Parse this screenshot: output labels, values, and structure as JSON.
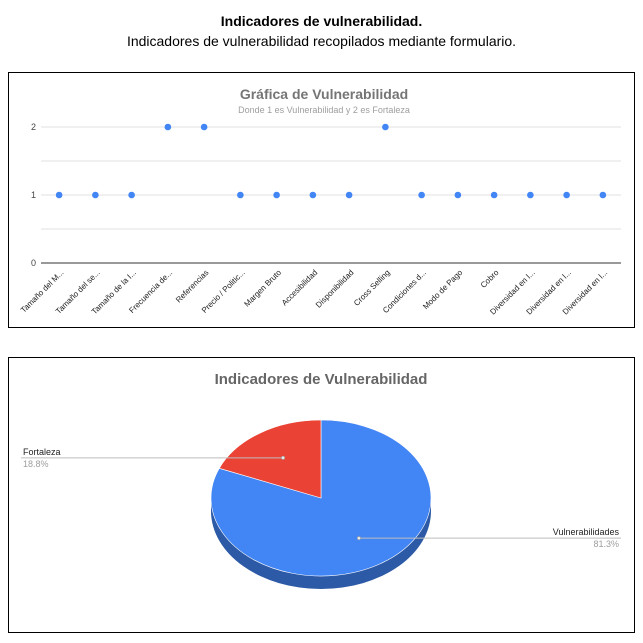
{
  "header": {
    "title": "Indicadores de vulnerabilidad.",
    "subtitle": "Indicadores de vulnerabilidad recopilados mediante formulario."
  },
  "chart_data": [
    {
      "type": "scatter",
      "title": "Gráfica de Vulnerabilidad",
      "subtitle": "Donde 1 es Vulnerabilidad y 2 es Fortaleza",
      "categories": [
        "Tamaño del M...",
        "Tamaño del se...",
        "Tamaño de la I...",
        "Frecuencia de...",
        "Referencias",
        "Precio / Politic...",
        "Margen Bruto",
        "Accesibilidad",
        "Disponibilidad",
        "Cross Selling",
        "Condiciones d...",
        "Modo de Pago",
        "Cobro",
        "Diversidad en l...",
        "Diversidad en l...",
        "Diversidad en l..."
      ],
      "values": [
        1,
        1,
        1,
        2,
        2,
        1,
        1,
        1,
        1,
        2,
        1,
        1,
        1,
        1,
        1,
        1
      ],
      "yticks": [
        "0",
        "1",
        "2"
      ],
      "ylim": [
        0,
        2
      ],
      "grid": true,
      "color": "#4285f4"
    },
    {
      "type": "pie",
      "title": "Indicadores de Vulnerabilidad",
      "slices": [
        {
          "label": "Vulnerabilidades",
          "percent_label": "81.3%",
          "value": 81.3,
          "color": "#4285f4"
        },
        {
          "label": "Fortaleza",
          "percent_label": "18.8%",
          "value": 18.8,
          "color": "#ea4335"
        }
      ]
    }
  ]
}
